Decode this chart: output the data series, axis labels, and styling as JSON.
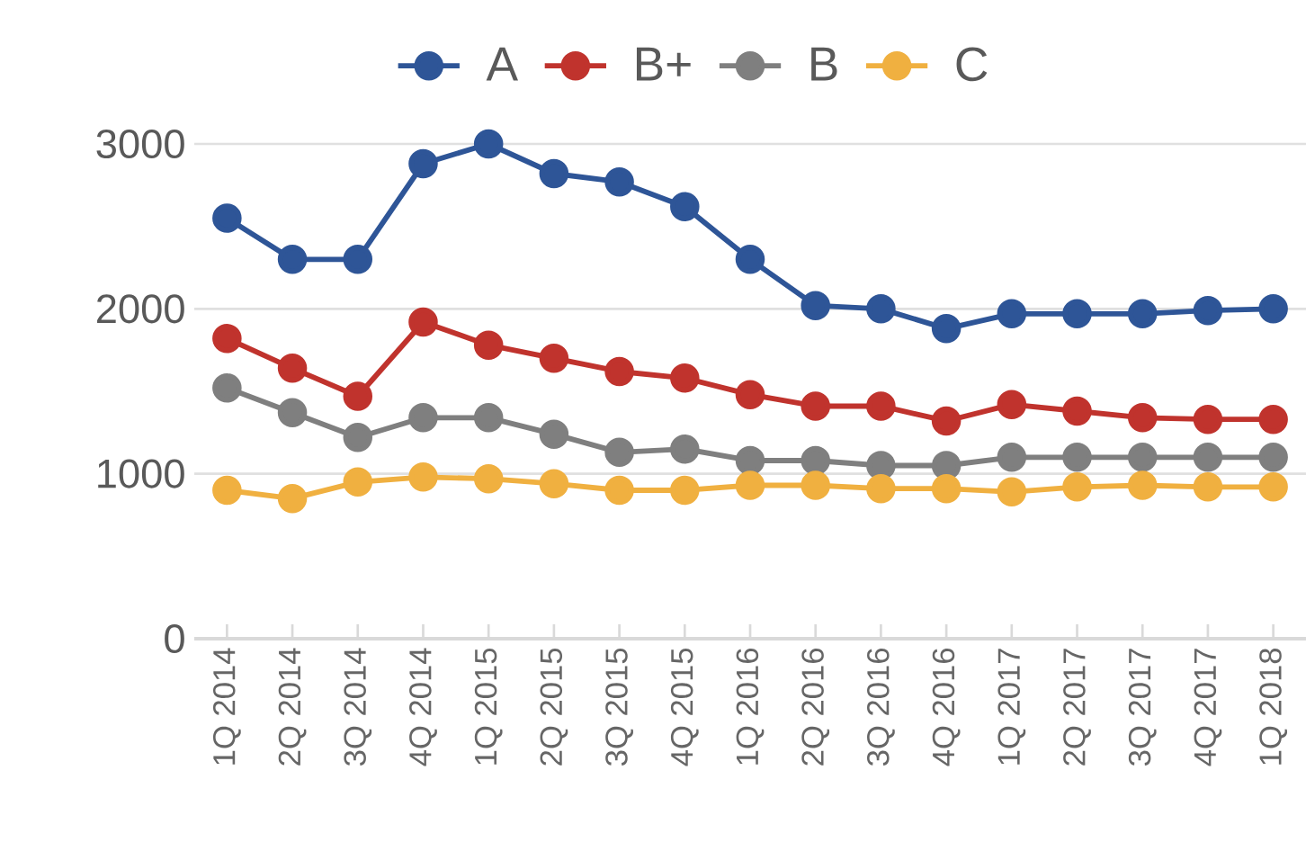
{
  "chart_data": {
    "type": "line",
    "categories": [
      "1Q 2014",
      "2Q 2014",
      "3Q 2014",
      "4Q 2014",
      "1Q 2015",
      "2Q 2015",
      "3Q 2015",
      "4Q 2015",
      "1Q 2016",
      "2Q 2016",
      "3Q 2016",
      "4Q 2016",
      "1Q 2017",
      "2Q 2017",
      "3Q 2017",
      "4Q 2017",
      "1Q 2018"
    ],
    "series": [
      {
        "name": "A",
        "color": "#2e5597",
        "values": [
          2550,
          2300,
          2300,
          2880,
          3000,
          2820,
          2770,
          2620,
          2300,
          2020,
          2000,
          1880,
          1970,
          1970,
          1970,
          1990,
          2000
        ]
      },
      {
        "name": "B+",
        "color": "#c0332d",
        "values": [
          1820,
          1640,
          1470,
          1920,
          1780,
          1700,
          1620,
          1580,
          1480,
          1410,
          1410,
          1320,
          1420,
          1380,
          1340,
          1330,
          1330
        ]
      },
      {
        "name": "B",
        "color": "#7f7f7f",
        "values": [
          1520,
          1370,
          1220,
          1340,
          1340,
          1240,
          1130,
          1150,
          1080,
          1080,
          1050,
          1050,
          1100,
          1100,
          1100,
          1100,
          1100
        ]
      },
      {
        "name": "C",
        "color": "#f0b040",
        "values": [
          900,
          850,
          950,
          980,
          970,
          940,
          900,
          900,
          930,
          930,
          910,
          910,
          890,
          920,
          930,
          920,
          920
        ]
      }
    ],
    "ylim": [
      0,
      3000
    ],
    "yticks": [
      0,
      1000,
      2000,
      3000
    ],
    "grid": "y",
    "legend": "top",
    "marker": "circle",
    "line_style": "solid"
  }
}
